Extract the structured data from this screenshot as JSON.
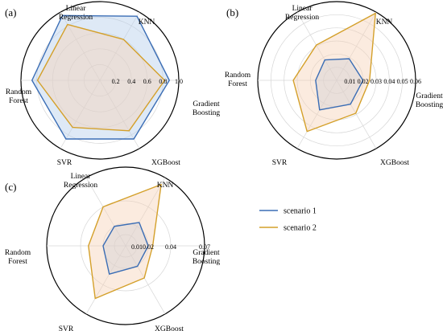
{
  "colors": {
    "scenario1": "#3a6db5",
    "scenario2": "#d4a02a",
    "fill1": "#b5cfea",
    "fill2": "#f6d3b7",
    "grid": "#d6d6d6",
    "ring": "#000000"
  },
  "legend": {
    "items": [
      {
        "label": "scenario 1",
        "series": "scenario1"
      },
      {
        "label": "scenario 2",
        "series": "scenario2"
      }
    ]
  },
  "chart_data": [
    {
      "type": "radar",
      "panel": "(a)",
      "axes": [
        "Linear Regression",
        "KNN",
        "Gradient Boosting",
        "XGBoost",
        "SVR",
        "Random Forest"
      ],
      "rmax": 1.0,
      "ticks": [
        0.2,
        0.4,
        0.6,
        0.8,
        1.0
      ],
      "tick_labels": [
        "0.2",
        "0.4",
        "0.6",
        "0.8",
        "1.0"
      ],
      "series": [
        {
          "name": "scenario 1",
          "values": [
            0.95,
            0.94,
            0.88,
            0.86,
            0.86,
            0.86
          ]
        },
        {
          "name": "scenario 2",
          "values": [
            0.82,
            0.6,
            0.82,
            0.74,
            0.69,
            0.79
          ]
        }
      ]
    },
    {
      "type": "radar",
      "panel": "(b)",
      "axes": [
        "Linear Regression",
        "KNN",
        "Gradient Boosting",
        "XGBoost",
        "SVR",
        "Random Forest"
      ],
      "rmax": 0.06,
      "ticks": [
        0.01,
        0.02,
        0.03,
        0.04,
        0.05,
        0.06
      ],
      "tick_labels": [
        "0.01",
        "0.02",
        "0.03",
        "0.04",
        "0.05",
        "0.06"
      ],
      "series": [
        {
          "name": "scenario 1",
          "values": [
            0.018,
            0.019,
            0.02,
            0.021,
            0.026,
            0.016
          ]
        },
        {
          "name": "scenario 2",
          "values": [
            0.031,
            0.059,
            0.025,
            0.029,
            0.045,
            0.033
          ]
        }
      ]
    },
    {
      "type": "radar",
      "panel": "(c)",
      "axes": [
        "Linear Regression",
        "KNN",
        "Gradient Boosting",
        "XGBoost",
        "SVR",
        "Random Forest"
      ],
      "rmax": 0.07,
      "ticks": [
        0.01,
        0.02,
        0.04,
        0.07
      ],
      "tick_labels": [
        "0.01",
        "0.02",
        "0.04",
        "0.07"
      ],
      "series": [
        {
          "name": "scenario 1",
          "values": [
            0.02,
            0.024,
            0.02,
            0.021,
            0.029,
            0.02
          ]
        },
        {
          "name": "scenario 2",
          "values": [
            0.04,
            0.063,
            0.024,
            0.033,
            0.054,
            0.033
          ]
        }
      ]
    }
  ]
}
